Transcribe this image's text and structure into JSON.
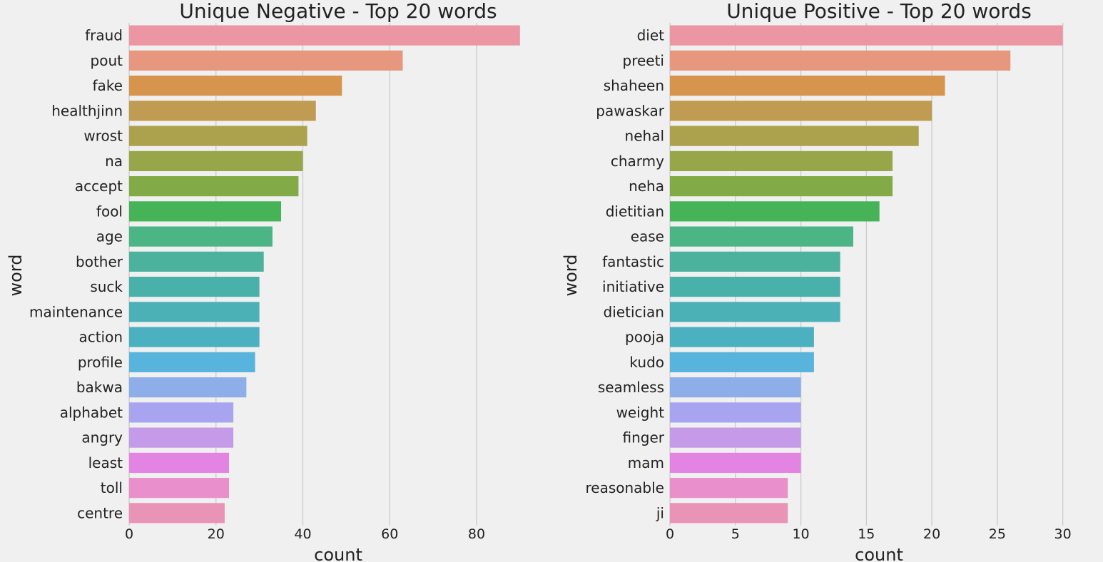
{
  "colors": {
    "background": "#f0f0f0",
    "grid": "#cbcbcb",
    "text": "#222222",
    "palette": [
      "#eb96a2",
      "#e8977f",
      "#d7944d",
      "#c09b52",
      "#aca24e",
      "#98a64a",
      "#82aa47",
      "#45b356",
      "#4cb585",
      "#4cb29d",
      "#49b0aa",
      "#4cb1b7",
      "#4bb1c0",
      "#58b3dd",
      "#8eaee9",
      "#a9a4ef",
      "#c49ae9",
      "#e384e3",
      "#e98fcb",
      "#e993b6"
    ]
  },
  "chart_data": [
    {
      "type": "bar",
      "orientation": "horizontal",
      "title": "Unique Negative - Top 20 words",
      "xlabel": "count",
      "ylabel": "word",
      "categories": [
        "fraud",
        "pout",
        "fake",
        "healthjinn",
        "wrost",
        "na",
        "accept",
        "fool",
        "age",
        "bother",
        "suck",
        "maintenance",
        "action",
        "profile",
        "bakwa",
        "alphabet",
        "angry",
        "least",
        "toll",
        "centre"
      ],
      "values": [
        90,
        63,
        49,
        43,
        41,
        40,
        39,
        35,
        33,
        31,
        30,
        30,
        30,
        29,
        27,
        24,
        24,
        23,
        23,
        22
      ],
      "xlim": [
        0,
        92
      ],
      "xticks": [
        "0",
        "20",
        "40",
        "60",
        "80"
      ],
      "grid": true
    },
    {
      "type": "bar",
      "orientation": "horizontal",
      "title": "Unique Positive - Top 20 words",
      "xlabel": "count",
      "ylabel": "word",
      "categories": [
        "diet",
        "preeti",
        "shaheen",
        "pawaskar",
        "nehal",
        "charmy",
        "neha",
        "dietitian",
        "ease",
        "fantastic",
        "initiative",
        "dietician",
        "pooja",
        "kudo",
        "seamless",
        "weight",
        "finger",
        "mam",
        "reasonable",
        "ji"
      ],
      "values": [
        30,
        26,
        21,
        20,
        19,
        17,
        17,
        16,
        14,
        13,
        13,
        13,
        11,
        11,
        10,
        10,
        10,
        10,
        9,
        9
      ],
      "xlim": [
        0,
        31
      ],
      "xticks": [
        "0",
        "5",
        "10",
        "15",
        "20",
        "25",
        "30"
      ],
      "grid": true
    }
  ]
}
